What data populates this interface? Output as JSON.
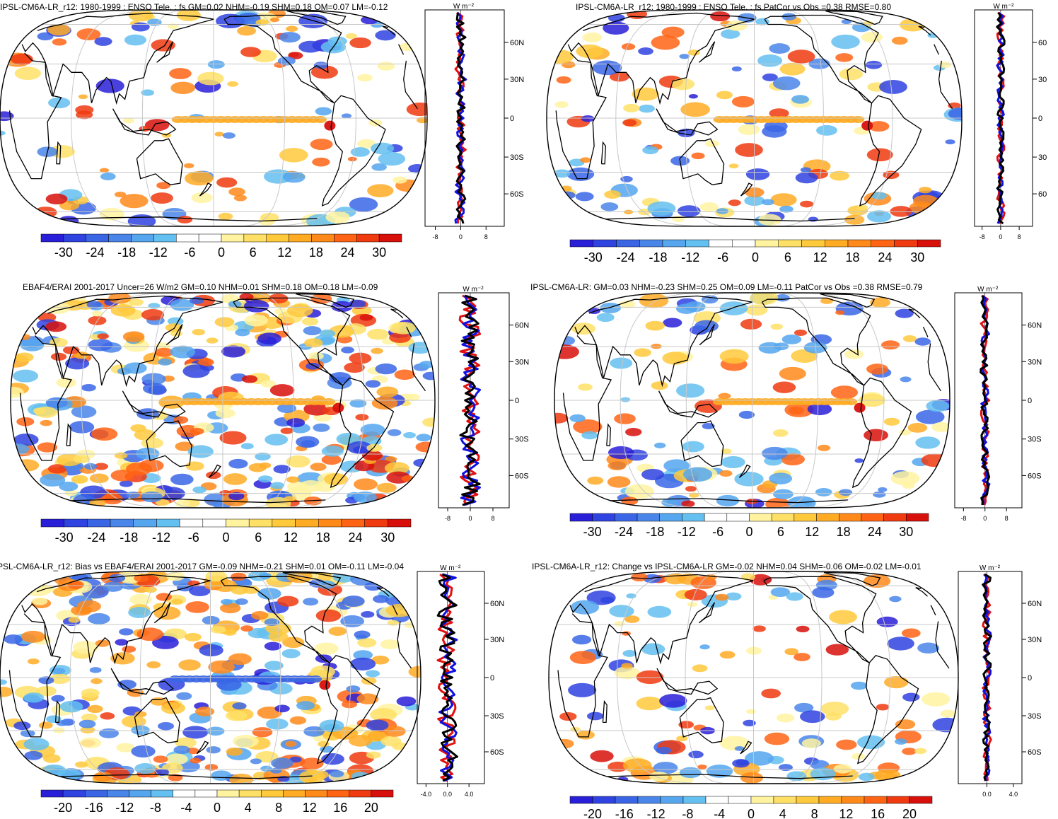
{
  "panels": [
    {
      "title": "IPSL-CM6A-LR_r12: 1980-1999 : ENSO Tele. : fs GM=0.02 NHM=-0.19 SHM=0.18 OM=0.07 LM=-0.12",
      "unit": "W m⁻²",
      "lat_ticks": [
        "60N",
        "30N",
        "0",
        "30S",
        "60S"
      ],
      "x_ticks": [
        "-8",
        "0",
        "8"
      ],
      "colorbar_labels": [
        "-30",
        "-24",
        "-18",
        "-12",
        "-6",
        "0",
        "6",
        "12",
        "18",
        "24",
        "30"
      ]
    },
    {
      "title": "IPSL-CM6A-LR_r12: 1980-1999 : ENSO Tele. : fs PatCor vs Obs =0.38 RMSE=0.80",
      "unit": "W m⁻²",
      "lat_ticks": [
        "60",
        "30",
        "0",
        "30",
        "60"
      ],
      "x_ticks": [
        "-8",
        "0",
        "8"
      ],
      "colorbar_labels": [
        "-30",
        "-24",
        "-18",
        "-12",
        "-6",
        "0",
        "6",
        "12",
        "18",
        "24",
        "30"
      ]
    },
    {
      "title": "EBAF4/ERAI 2001-2017 Uncer=26 W/m2 GM=0.10 NHM=0.01 SHM=0.18 OM=0.18 LM=-0.09",
      "unit": "W m⁻²",
      "lat_ticks": [
        "60N",
        "30N",
        "0",
        "30S",
        "60S"
      ],
      "x_ticks": [
        "-8",
        "0",
        "8"
      ],
      "colorbar_labels": [
        "-30",
        "-24",
        "-18",
        "-12",
        "-6",
        "0",
        "6",
        "12",
        "18",
        "24",
        "30"
      ]
    },
    {
      "title": "IPSL-CM6A-LR: GM=0.03 NHM=-0.23 SHM=0.25 OM=0.09 LM=-0.11 PatCor vs Obs =0.38 RMSE=0.79",
      "unit": "W m⁻²",
      "lat_ticks": [
        "60N",
        "30N",
        "0",
        "30S",
        "60S"
      ],
      "x_ticks": [
        "-8",
        "0",
        "8"
      ],
      "colorbar_labels": [
        "-30",
        "-24",
        "-18",
        "-12",
        "-6",
        "0",
        "6",
        "12",
        "18",
        "24",
        "30"
      ]
    },
    {
      "title": "PSL-CM6A-LR_r12: Bias vs EBAF4/ERAI 2001-2017 GM=-0.09 NHM=-0.21 SHM=0.01 OM=-0.11 LM=-0.04",
      "unit": "W m⁻²",
      "lat_ticks": [
        "60N",
        "30N",
        "0",
        "30S",
        "60S"
      ],
      "x_ticks": [
        "-4.0",
        "0.0",
        "4.0"
      ],
      "colorbar_labels": [
        "-20",
        "-16",
        "-12",
        "-8",
        "-4",
        "0",
        "4",
        "8",
        "12",
        "16",
        "20"
      ]
    },
    {
      "title": "IPSL-CM6A-LR_r12: Change vs IPSL-CM6A-LR GM=-0.02 NHM=0.04 SHM=-0.06 OM=-0.02 LM=-0.01",
      "unit": "W m⁻²",
      "lat_ticks": [
        "60N",
        "30N",
        "0",
        "30S",
        "60S"
      ],
      "x_ticks": [
        "0.0",
        "4.0"
      ],
      "colorbar_labels": [
        "-20",
        "-16",
        "-12",
        "-8",
        "-4",
        "0",
        "4",
        "8",
        "12",
        "16",
        "20"
      ]
    }
  ],
  "colors": {
    "palette": [
      "#2a1fd8",
      "#2f43e0",
      "#3a66e6",
      "#4a86ea",
      "#55a6ee",
      "#64c0f0",
      "#ffffff",
      "#ffffff",
      "#fff3a0",
      "#ffe066",
      "#ffc93c",
      "#ffab24",
      "#ff8a1a",
      "#ff6414",
      "#f03a10",
      "#d8100c"
    ],
    "land_outline": "#000000",
    "grid": "#c8c8c8",
    "zonal_model": "#e01010",
    "zonal_obs": "#1010e0",
    "zonal_black": "#000000"
  }
}
